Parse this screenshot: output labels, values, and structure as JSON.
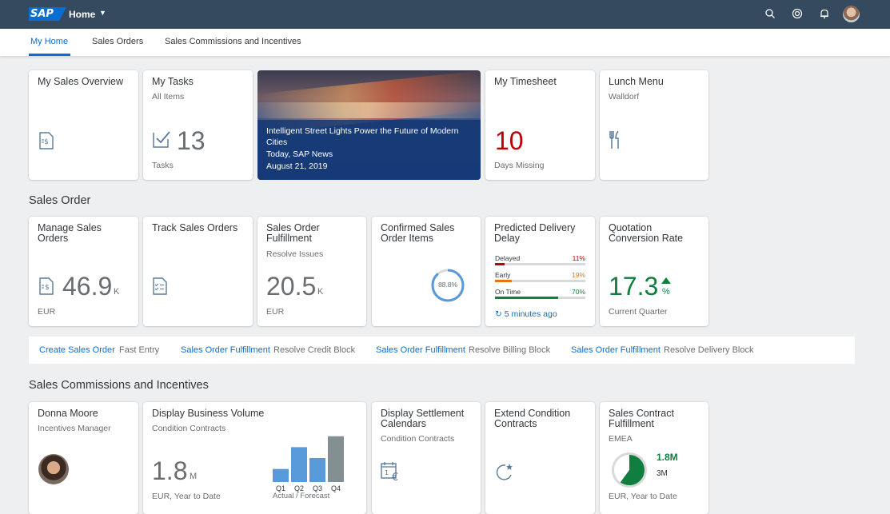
{
  "shell": {
    "logo": "SAP",
    "title": "Home"
  },
  "subnav": {
    "tabs": [
      "My Home",
      "Sales Orders",
      "Sales Commissions and Incentives"
    ]
  },
  "row1": {
    "my_sales_overview": {
      "title": "My Sales Overview"
    },
    "my_tasks": {
      "title": "My Tasks",
      "subtitle": "All Items",
      "value": "13",
      "footer": "Tasks"
    },
    "news": {
      "headline": "Intelligent Street Lights Power the Future of Modern Cities",
      "source": "Today, SAP News",
      "date": "August 21, 2019"
    },
    "timesheet": {
      "title": "My Timesheet",
      "value": "10",
      "footer": "Days Missing",
      "value_color": "#bb0000"
    },
    "lunch": {
      "title": "Lunch Menu",
      "subtitle": "Walldorf"
    }
  },
  "sales_order": {
    "section_title": "Sales Order",
    "manage": {
      "title": "Manage Sales Orders",
      "value": "46.9",
      "unit": "K",
      "footer": "EUR"
    },
    "track": {
      "title": "Track Sales Orders"
    },
    "fulfillment": {
      "title": "Sales Order Fulfillment",
      "subtitle": "Resolve Issues",
      "value": "20.5",
      "unit": "K",
      "footer": "EUR"
    },
    "confirmed": {
      "title": "Confirmed Sales Order Items",
      "percent_label": "88.8%",
      "percent": 88.8
    },
    "delivery": {
      "title": "Predicted Delivery Delay",
      "rows": [
        {
          "label": "Delayed",
          "value_label": "11%",
          "value": 11,
          "color": "#bb0000"
        },
        {
          "label": "Early",
          "value_label": "19%",
          "value": 19,
          "color": "#e9730c"
        },
        {
          "label": "On Time",
          "value_label": "70%",
          "value": 70,
          "color": "#107e3e"
        }
      ],
      "refresh": "5 minutes ago"
    },
    "quotation": {
      "title": "Quotation Conversion Rate",
      "value": "17.3",
      "unit": "%",
      "footer": "Current Quarter",
      "color": "#107e3e"
    }
  },
  "linkbar": [
    {
      "link": "Create Sales Order",
      "sub": "Fast Entry"
    },
    {
      "link": "Sales Order Fulfillment",
      "sub": "Resolve Credit Block"
    },
    {
      "link": "Sales Order Fulfillment",
      "sub": "Resolve Billing Block"
    },
    {
      "link": "Sales Order Fulfillment",
      "sub": "Resolve Delivery Block"
    }
  ],
  "commissions": {
    "section_title": "Sales Commissions and Incentives",
    "donna": {
      "title": "Donna Moore",
      "subtitle": "Incentives Manager"
    },
    "business_volume": {
      "title": "Display Business Volume",
      "subtitle": "Condition Contracts",
      "value": "1.8",
      "unit": "M",
      "footer": "EUR, Year to Date",
      "chart_caption": "Actual / Forecast"
    },
    "settlement": {
      "title": "Display Settlement Calendars",
      "subtitle": "Condition Contracts"
    },
    "extend": {
      "title": "Extend Condition Contracts"
    },
    "contract": {
      "title": "Sales Contract Fulfillment",
      "subtitle": "EMEA",
      "value1": "1.8M",
      "value2": "3M",
      "footer": "EUR, Year to Date",
      "fraction": 0.6
    }
  },
  "chart_data": {
    "type": "bar",
    "categories": [
      "Q1",
      "Q2",
      "Q3",
      "Q4"
    ],
    "series": [
      {
        "name": "Actual",
        "values": [
          0.6,
          1.6,
          1.1,
          2.1
        ],
        "color": "#5899da"
      },
      {
        "name": "Forecast",
        "values": [
          null,
          null,
          null,
          2.1
        ],
        "color": "#848f94"
      }
    ],
    "xlabel": "Actual / Forecast",
    "ylim": [
      0,
      2.2
    ]
  }
}
